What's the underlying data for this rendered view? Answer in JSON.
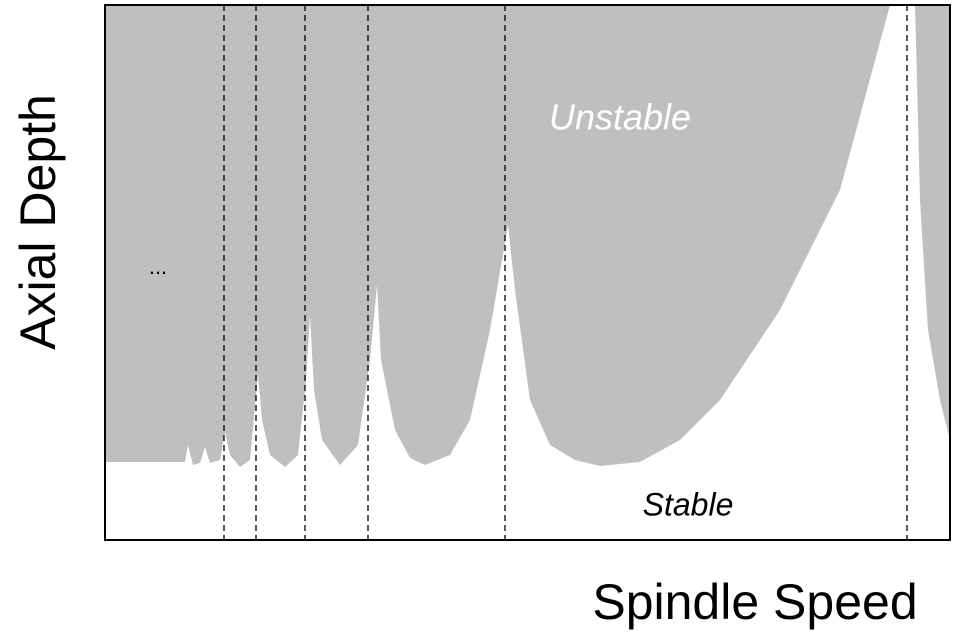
{
  "axes": {
    "x_label": "Spindle Speed",
    "y_label": "Axial Depth"
  },
  "regions": {
    "unstable": "Unstable",
    "stable": "Stable"
  },
  "ellipsis": "..."
}
